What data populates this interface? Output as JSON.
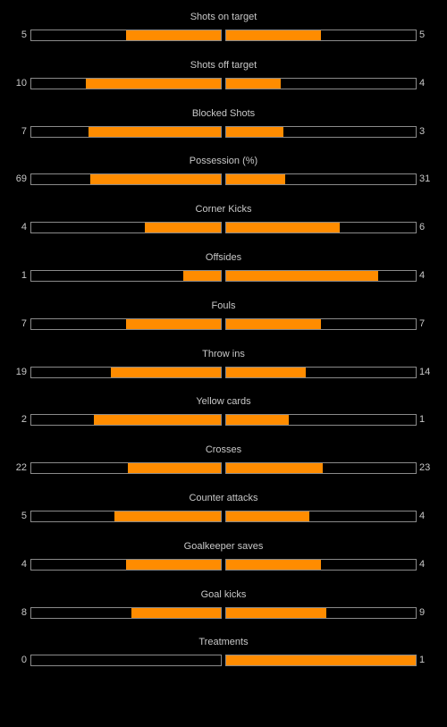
{
  "colors": {
    "background": "#000000",
    "bar_fill": "#ff8c00",
    "bar_border": "#8a8a8a",
    "text": "#c8c8c8"
  },
  "stats": [
    {
      "label": "Shots on target",
      "home": 5,
      "away": 5
    },
    {
      "label": "Shots off target",
      "home": 10,
      "away": 4
    },
    {
      "label": "Blocked Shots",
      "home": 7,
      "away": 3
    },
    {
      "label": "Possession (%)",
      "home": 69,
      "away": 31
    },
    {
      "label": "Corner Kicks",
      "home": 4,
      "away": 6
    },
    {
      "label": "Offsides",
      "home": 1,
      "away": 4
    },
    {
      "label": "Fouls",
      "home": 7,
      "away": 7
    },
    {
      "label": "Throw ins",
      "home": 19,
      "away": 14
    },
    {
      "label": "Yellow cards",
      "home": 2,
      "away": 1
    },
    {
      "label": "Crosses",
      "home": 22,
      "away": 23
    },
    {
      "label": "Counter attacks",
      "home": 5,
      "away": 4
    },
    {
      "label": "Goalkeeper saves",
      "home": 4,
      "away": 4
    },
    {
      "label": "Goal kicks",
      "home": 8,
      "away": 9
    },
    {
      "label": "Treatments",
      "home": 0,
      "away": 1
    }
  ],
  "bar_levels": [
    {
      "home": 0.5,
      "away": 0.5
    },
    {
      "home": 0.71,
      "away": 0.29
    },
    {
      "home": 0.7,
      "away": 0.3
    },
    {
      "home": 0.69,
      "away": 0.31
    },
    {
      "home": 0.4,
      "away": 0.6
    },
    {
      "home": 0.2,
      "away": 0.8
    },
    {
      "home": 0.5,
      "away": 0.5
    },
    {
      "home": 0.58,
      "away": 0.42
    },
    {
      "home": 0.67,
      "away": 0.33
    },
    {
      "home": 0.49,
      "away": 0.51
    },
    {
      "home": 0.56,
      "away": 0.44
    },
    {
      "home": 0.5,
      "away": 0.5
    },
    {
      "home": 0.47,
      "away": 0.53
    },
    {
      "home": 0.0,
      "away": 1.0
    }
  ]
}
